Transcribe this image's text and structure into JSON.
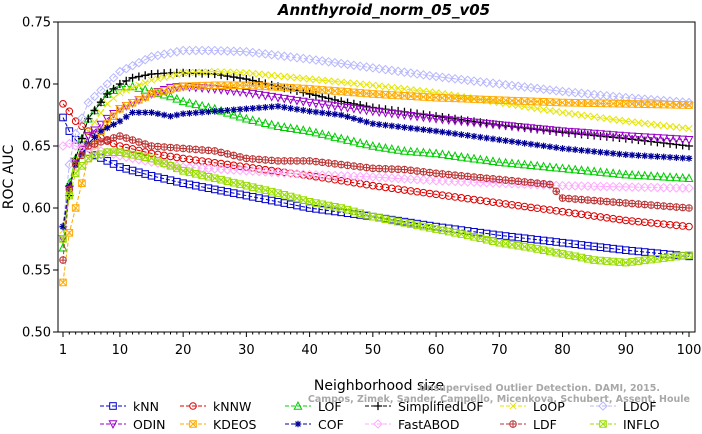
{
  "chart_data": {
    "type": "line",
    "title": "Annthyroid_norm_05_v05",
    "xlabel": "Neighborhood size",
    "ylabel": "ROC AUC",
    "xlim": [
      0,
      100
    ],
    "ylim": [
      0.5,
      0.75
    ],
    "x_ticks": [
      1,
      10,
      20,
      30,
      40,
      50,
      60,
      70,
      80,
      90,
      100
    ],
    "y_ticks": [
      0.5,
      0.55,
      0.6,
      0.65,
      0.7,
      0.75
    ],
    "y_tick_labels": [
      "0.50",
      "0.55",
      "0.60",
      "0.65",
      "0.70",
      "0.75"
    ],
    "grid": false,
    "legend_position": "bottom",
    "watermark": [
      "Campos, Zimek, Sander, Campello, Micenkova, Schubert, Assent, Houle",
      "Unsupervised Outlier Detection. DAMI, 2015."
    ],
    "series": [
      {
        "name": "kNN",
        "color": "#0000cc",
        "marker": "square",
        "x": [
          1,
          2,
          3,
          5,
          8,
          10,
          15,
          20,
          30,
          40,
          50,
          60,
          70,
          80,
          90,
          100
        ],
        "y": [
          0.673,
          0.662,
          0.655,
          0.645,
          0.638,
          0.633,
          0.626,
          0.62,
          0.61,
          0.6,
          0.593,
          0.585,
          0.578,
          0.572,
          0.566,
          0.561
        ]
      },
      {
        "name": "kNNW",
        "color": "#dd0000",
        "marker": "circle",
        "x": [
          1,
          2,
          3,
          5,
          8,
          10,
          15,
          20,
          30,
          40,
          50,
          60,
          70,
          80,
          90,
          100
        ],
        "y": [
          0.684,
          0.678,
          0.67,
          0.662,
          0.654,
          0.65,
          0.644,
          0.64,
          0.633,
          0.626,
          0.618,
          0.611,
          0.604,
          0.597,
          0.59,
          0.585
        ]
      },
      {
        "name": "LOF",
        "color": "#00cc00",
        "marker": "triangle",
        "x": [
          1,
          2,
          3,
          5,
          8,
          10,
          12,
          15,
          18,
          20,
          25,
          30,
          35,
          40,
          45,
          50,
          55,
          60,
          70,
          80,
          90,
          100
        ],
        "y": [
          0.568,
          0.62,
          0.64,
          0.672,
          0.692,
          0.698,
          0.698,
          0.694,
          0.69,
          0.686,
          0.68,
          0.672,
          0.666,
          0.662,
          0.656,
          0.65,
          0.646,
          0.644,
          0.637,
          0.632,
          0.627,
          0.624
        ]
      },
      {
        "name": "SimplifiedLOF",
        "color": "#000000",
        "marker": "plus",
        "x": [
          1,
          2,
          3,
          5,
          8,
          10,
          12,
          15,
          18,
          20,
          25,
          30,
          35,
          40,
          45,
          50,
          60,
          70,
          80,
          90,
          100
        ],
        "y": [
          0.585,
          0.61,
          0.64,
          0.672,
          0.692,
          0.7,
          0.705,
          0.708,
          0.709,
          0.709,
          0.708,
          0.704,
          0.698,
          0.692,
          0.686,
          0.681,
          0.674,
          0.667,
          0.661,
          0.656,
          0.65
        ]
      },
      {
        "name": "LoOP",
        "color": "#e6e600",
        "marker": "x",
        "x": [
          1,
          2,
          3,
          5,
          8,
          10,
          15,
          20,
          25,
          30,
          40,
          50,
          60,
          70,
          80,
          90,
          100
        ],
        "y": [
          0.582,
          0.615,
          0.638,
          0.662,
          0.684,
          0.693,
          0.703,
          0.709,
          0.71,
          0.709,
          0.704,
          0.699,
          0.693,
          0.685,
          0.677,
          0.67,
          0.664
        ]
      },
      {
        "name": "LDOF",
        "color": "#b8b8ff",
        "marker": "diamond",
        "x": [
          1,
          2,
          3,
          5,
          8,
          10,
          15,
          20,
          25,
          30,
          40,
          50,
          60,
          70,
          80,
          90,
          100
        ],
        "y": [
          0.585,
          0.635,
          0.66,
          0.685,
          0.7,
          0.71,
          0.722,
          0.727,
          0.727,
          0.726,
          0.72,
          0.713,
          0.706,
          0.7,
          0.694,
          0.689,
          0.685
        ]
      },
      {
        "name": "ODIN",
        "color": "#9900cc",
        "marker": "triangle-down",
        "x": [
          1,
          2,
          3,
          5,
          8,
          10,
          15,
          18,
          20,
          25,
          30,
          40,
          50,
          60,
          70,
          80,
          90,
          100
        ],
        "y": [
          0.575,
          0.615,
          0.636,
          0.658,
          0.672,
          0.68,
          0.692,
          0.697,
          0.698,
          0.696,
          0.693,
          0.685,
          0.678,
          0.672,
          0.667,
          0.662,
          0.658,
          0.655
        ]
      },
      {
        "name": "KDEOS",
        "color": "#ffaa00",
        "marker": "square-x",
        "x": [
          1,
          2,
          3,
          4,
          5,
          7,
          10,
          15,
          20,
          25,
          30,
          40,
          50,
          60,
          70,
          80,
          90,
          100
        ],
        "y": [
          0.54,
          0.58,
          0.6,
          0.62,
          0.64,
          0.662,
          0.68,
          0.692,
          0.698,
          0.699,
          0.699,
          0.696,
          0.692,
          0.689,
          0.687,
          0.685,
          0.684,
          0.683
        ]
      },
      {
        "name": "COF",
        "color": "#000099",
        "marker": "star",
        "x": [
          1,
          2,
          3,
          5,
          7,
          10,
          12,
          15,
          18,
          20,
          25,
          30,
          35,
          40,
          45,
          50,
          60,
          70,
          80,
          90,
          100
        ],
        "y": [
          0.585,
          0.618,
          0.635,
          0.652,
          0.662,
          0.67,
          0.677,
          0.677,
          0.674,
          0.676,
          0.678,
          0.68,
          0.682,
          0.678,
          0.675,
          0.668,
          0.662,
          0.655,
          0.648,
          0.643,
          0.64
        ]
      },
      {
        "name": "FastABOD",
        "color": "#ffaaff",
        "marker": "diamond",
        "x": [
          1,
          2,
          3,
          5,
          8,
          10,
          15,
          20,
          30,
          40,
          50,
          60,
          70,
          80,
          90,
          100
        ],
        "y": [
          0.65,
          0.652,
          0.65,
          0.648,
          0.645,
          0.642,
          0.637,
          0.633,
          0.63,
          0.627,
          0.625,
          0.622,
          0.62,
          0.618,
          0.617,
          0.616
        ]
      },
      {
        "name": "LDF",
        "color": "#bb3333",
        "marker": "circle-plus",
        "x": [
          1,
          2,
          3,
          5,
          8,
          10,
          15,
          20,
          25,
          30,
          35,
          40,
          50,
          55,
          60,
          70,
          78,
          80,
          90,
          100
        ],
        "y": [
          0.558,
          0.615,
          0.635,
          0.65,
          0.655,
          0.658,
          0.65,
          0.648,
          0.646,
          0.64,
          0.638,
          0.638,
          0.632,
          0.631,
          0.628,
          0.623,
          0.619,
          0.608,
          0.604,
          0.6
        ]
      },
      {
        "name": "INFLO",
        "color": "#99dd00",
        "marker": "hourglass",
        "x": [
          1,
          2,
          3,
          5,
          8,
          10,
          15,
          20,
          25,
          30,
          35,
          40,
          45,
          50,
          55,
          60,
          65,
          70,
          75,
          80,
          85,
          90,
          100
        ],
        "y": [
          0.575,
          0.61,
          0.628,
          0.64,
          0.645,
          0.645,
          0.64,
          0.63,
          0.624,
          0.618,
          0.612,
          0.605,
          0.6,
          0.593,
          0.588,
          0.583,
          0.578,
          0.572,
          0.568,
          0.563,
          0.558,
          0.556,
          0.562
        ]
      }
    ]
  }
}
